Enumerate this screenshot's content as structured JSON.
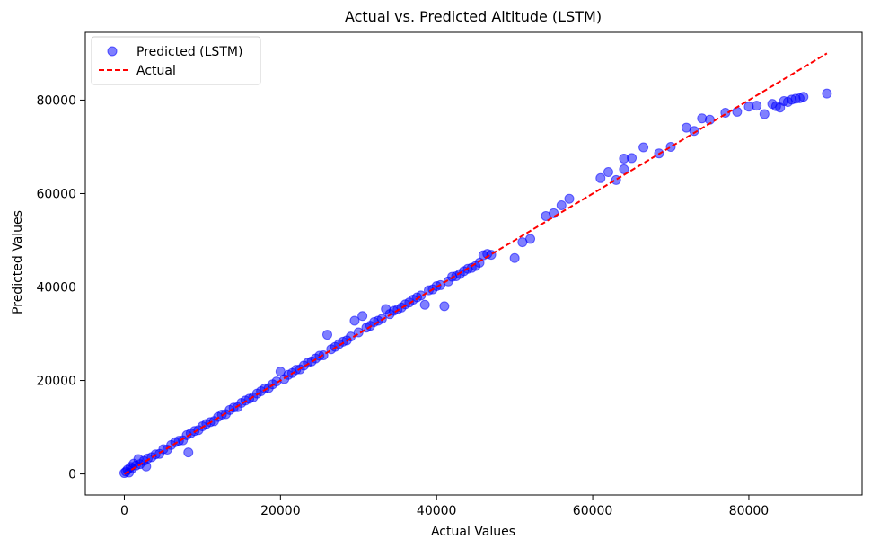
{
  "chart_data": {
    "type": "scatter",
    "title": "Actual vs. Predicted Altitude (LSTM)",
    "xlabel": "Actual Values",
    "ylabel": "Predicted Values",
    "xlim": [
      -5000,
      94500
    ],
    "ylim": [
      -4500,
      94500
    ],
    "xticks": [
      0,
      20000,
      40000,
      60000,
      80000
    ],
    "yticks": [
      0,
      20000,
      40000,
      60000,
      80000
    ],
    "xtick_labels": [
      "0",
      "20000",
      "40000",
      "60000",
      "80000"
    ],
    "ytick_labels": [
      "0",
      "20000",
      "40000",
      "60000",
      "80000"
    ],
    "grid": false,
    "legend_position": "top-left",
    "colors": {
      "predicted": "#0000ff",
      "actual": "#ff0000"
    },
    "series": [
      {
        "name": "Predicted (LSTM)",
        "kind": "scatter",
        "points": [
          [
            0,
            200
          ],
          [
            200,
            500
          ],
          [
            400,
            900
          ],
          [
            600,
            300
          ],
          [
            800,
            1500
          ],
          [
            1000,
            1200
          ],
          [
            1200,
            2200
          ],
          [
            1500,
            1800
          ],
          [
            1800,
            3200
          ],
          [
            2000,
            2100
          ],
          [
            2500,
            2800
          ],
          [
            2800,
            1600
          ],
          [
            3000,
            3300
          ],
          [
            3500,
            3600
          ],
          [
            4000,
            4200
          ],
          [
            4500,
            4300
          ],
          [
            5000,
            5300
          ],
          [
            5500,
            5200
          ],
          [
            6000,
            6200
          ],
          [
            6500,
            6800
          ],
          [
            7000,
            7100
          ],
          [
            7500,
            7200
          ],
          [
            8000,
            8300
          ],
          [
            8200,
            4600
          ],
          [
            8500,
            8700
          ],
          [
            9000,
            9200
          ],
          [
            9500,
            9400
          ],
          [
            10000,
            10200
          ],
          [
            10500,
            10700
          ],
          [
            11000,
            11100
          ],
          [
            11500,
            11300
          ],
          [
            12000,
            12200
          ],
          [
            12500,
            12700
          ],
          [
            13000,
            12800
          ],
          [
            13500,
            13700
          ],
          [
            14000,
            14200
          ],
          [
            14500,
            14300
          ],
          [
            15000,
            15200
          ],
          [
            15500,
            15700
          ],
          [
            16000,
            16100
          ],
          [
            16500,
            16400
          ],
          [
            17000,
            17200
          ],
          [
            17500,
            17700
          ],
          [
            18000,
            18300
          ],
          [
            18500,
            18400
          ],
          [
            19000,
            19200
          ],
          [
            19500,
            19800
          ],
          [
            20000,
            21900
          ],
          [
            20500,
            20300
          ],
          [
            21000,
            21200
          ],
          [
            21500,
            21600
          ],
          [
            22000,
            22300
          ],
          [
            22500,
            22400
          ],
          [
            23000,
            23200
          ],
          [
            23500,
            23800
          ],
          [
            24000,
            24100
          ],
          [
            24500,
            24700
          ],
          [
            25000,
            25300
          ],
          [
            25500,
            25400
          ],
          [
            26000,
            29800
          ],
          [
            26500,
            26700
          ],
          [
            27000,
            27200
          ],
          [
            27500,
            27800
          ],
          [
            28000,
            28300
          ],
          [
            28500,
            28600
          ],
          [
            29000,
            29400
          ],
          [
            29500,
            32800
          ],
          [
            30000,
            30300
          ],
          [
            30500,
            33800
          ],
          [
            31000,
            31300
          ],
          [
            31500,
            31700
          ],
          [
            32000,
            32500
          ],
          [
            32500,
            32800
          ],
          [
            33000,
            33200
          ],
          [
            33500,
            35300
          ],
          [
            34000,
            34200
          ],
          [
            34500,
            34900
          ],
          [
            35000,
            35200
          ],
          [
            35500,
            35600
          ],
          [
            36000,
            36300
          ],
          [
            36500,
            36700
          ],
          [
            37000,
            37300
          ],
          [
            37500,
            37800
          ],
          [
            38000,
            38200
          ],
          [
            38500,
            36200
          ],
          [
            39000,
            39300
          ],
          [
            39500,
            39500
          ],
          [
            40000,
            40200
          ],
          [
            40500,
            40400
          ],
          [
            41000,
            35900
          ],
          [
            41500,
            41200
          ],
          [
            42000,
            42200
          ],
          [
            42500,
            42300
          ],
          [
            43000,
            42800
          ],
          [
            43500,
            43400
          ],
          [
            44000,
            43900
          ],
          [
            44500,
            44100
          ],
          [
            45000,
            44500
          ],
          [
            45500,
            45200
          ],
          [
            46000,
            46800
          ],
          [
            46500,
            47100
          ],
          [
            47000,
            46900
          ],
          [
            50000,
            46200
          ],
          [
            51000,
            49600
          ],
          [
            52000,
            50300
          ],
          [
            54000,
            55200
          ],
          [
            55000,
            55800
          ],
          [
            56000,
            57500
          ],
          [
            57000,
            58900
          ],
          [
            61000,
            63300
          ],
          [
            62000,
            64600
          ],
          [
            63000,
            62900
          ],
          [
            64000,
            65200
          ],
          [
            64000,
            67500
          ],
          [
            65000,
            67600
          ],
          [
            66500,
            69900
          ],
          [
            68500,
            68600
          ],
          [
            70000,
            70000
          ],
          [
            72000,
            74100
          ],
          [
            73000,
            73400
          ],
          [
            74000,
            76100
          ],
          [
            75000,
            75800
          ],
          [
            77000,
            77300
          ],
          [
            78500,
            77500
          ],
          [
            80000,
            78600
          ],
          [
            81000,
            78800
          ],
          [
            82000,
            77000
          ],
          [
            83000,
            79200
          ],
          [
            83500,
            78700
          ],
          [
            84000,
            78400
          ],
          [
            84500,
            79800
          ],
          [
            85000,
            79600
          ],
          [
            85500,
            80100
          ],
          [
            86000,
            80300
          ],
          [
            86500,
            80400
          ],
          [
            87000,
            80700
          ],
          [
            90000,
            81400
          ]
        ]
      },
      {
        "name": "Actual",
        "kind": "line",
        "style": "dashed",
        "x": [
          0,
          90000
        ],
        "y": [
          0,
          90000
        ]
      }
    ]
  }
}
